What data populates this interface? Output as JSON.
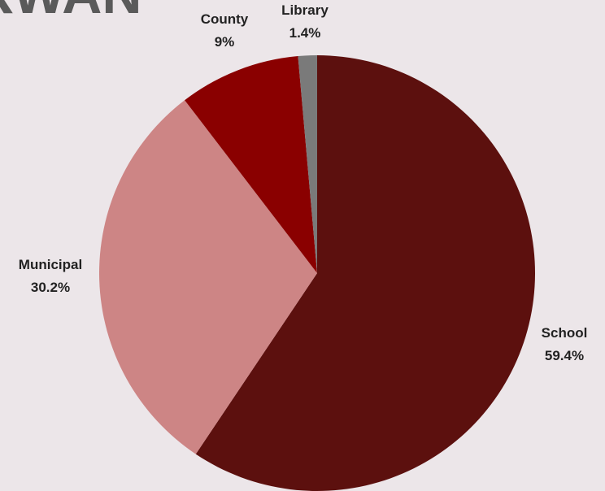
{
  "watermark_text": "RWAN",
  "chart_data": {
    "type": "pie",
    "title": "",
    "labels": [
      "School",
      "Municipal",
      "County",
      "Library"
    ],
    "values": [
      59.4,
      30.2,
      9,
      1.4
    ],
    "value_labels": [
      "59.4%",
      "30.2%",
      "9%",
      "1.4%"
    ],
    "colors": [
      "#5c100e",
      "#cd8585",
      "#8a0000",
      "#7a7a7a"
    ],
    "start": "12 o'clock",
    "direction": "clockwise",
    "legend": "none"
  }
}
